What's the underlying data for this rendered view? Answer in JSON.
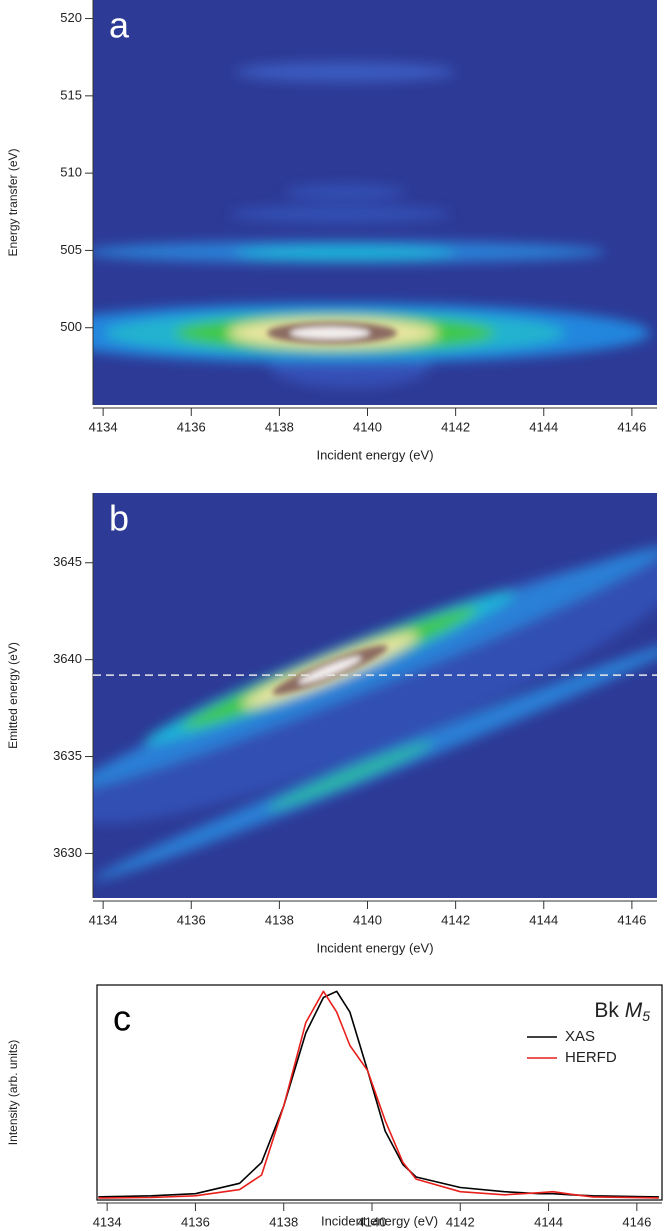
{
  "chart_data": [
    {
      "type": "contour",
      "panel_label": "a",
      "x_label": "Incident energy (eV)",
      "y_label": "Energy transfer (eV)",
      "xlim": [
        4133.77,
        4146.57
      ],
      "xticks": [
        4134,
        4136,
        4138,
        4140,
        4142,
        4144,
        4146
      ],
      "ylim": [
        495.0,
        521.2
      ],
      "yticks": [
        500,
        505,
        510,
        515,
        520
      ]
    },
    {
      "type": "contour",
      "panel_label": "b",
      "x_label": "Incident energy (eV)",
      "y_label": "Emitted energy (eV)",
      "xlim": [
        4133.77,
        4146.57
      ],
      "xticks": [
        4134,
        4136,
        4138,
        4140,
        4142,
        4144,
        4146
      ],
      "ylim": [
        3627.7,
        3648.6
      ],
      "yticks": [
        3630,
        3635,
        3640,
        3645
      ],
      "hline": 3639.2
    },
    {
      "type": "line",
      "panel_label": "c",
      "annotation": {
        "element": "Bk",
        "edge": "M",
        "subscript": "5"
      },
      "x_label": "Incident energy (eV)",
      "y_label": "Intensity (arb. units)",
      "xlim": [
        4133.77,
        4146.57
      ],
      "xticks": [
        4134,
        4136,
        4138,
        4140,
        4142,
        4144,
        4146
      ],
      "ylim": [
        0,
        1.03
      ],
      "legend": "upper right",
      "x": [
        4133.8,
        4134,
        4135,
        4136,
        4137,
        4137.5,
        4138,
        4138.5,
        4138.9,
        4139.2,
        4139.5,
        4139.9,
        4140.3,
        4140.7,
        4141,
        4142,
        4143,
        4143.8,
        4144.1,
        4144.5,
        4145,
        4146.5
      ],
      "series": [
        {
          "name": "XAS",
          "color": "#000000",
          "values": [
            0.015,
            0.016,
            0.02,
            0.03,
            0.08,
            0.18,
            0.45,
            0.8,
            0.97,
            1.0,
            0.9,
            0.62,
            0.33,
            0.17,
            0.11,
            0.06,
            0.04,
            0.03,
            0.03,
            0.025,
            0.02,
            0.015
          ]
        },
        {
          "name": "HERFD",
          "color": "#e8201c",
          "values": [
            0.01,
            0.01,
            0.012,
            0.02,
            0.05,
            0.12,
            0.45,
            0.85,
            1.0,
            0.9,
            0.74,
            0.62,
            0.38,
            0.18,
            0.1,
            0.04,
            0.025,
            0.035,
            0.04,
            0.028,
            0.015,
            0.01
          ]
        }
      ]
    }
  ]
}
